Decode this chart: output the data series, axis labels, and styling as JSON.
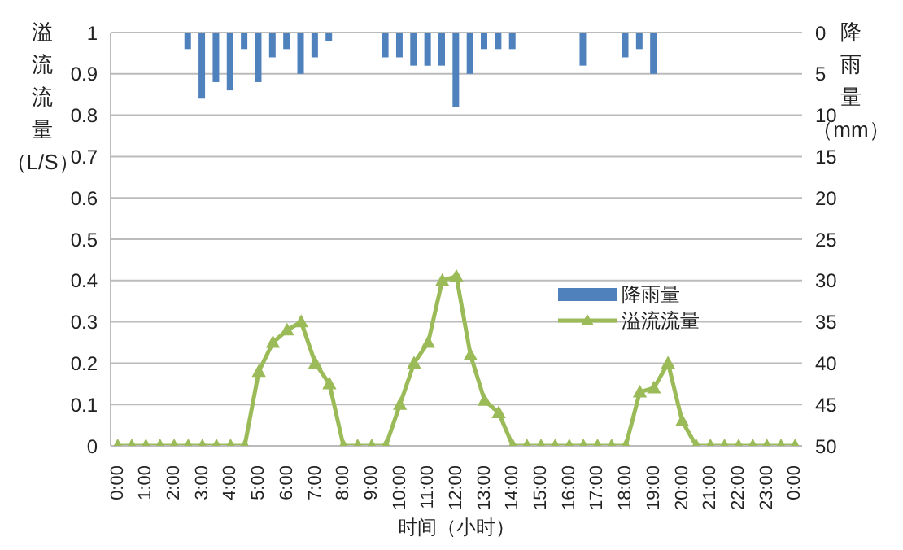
{
  "chart_data": {
    "type": "line",
    "categories": [
      "0:00",
      null,
      "1:00",
      null,
      "2:00",
      null,
      "3:00",
      null,
      "4:00",
      null,
      "5:00",
      null,
      "6:00",
      null,
      "7:00",
      null,
      "8:00",
      null,
      "9:00",
      null,
      "10:00",
      null,
      "11:00",
      null,
      "12:00",
      null,
      "13:00",
      null,
      "14:00",
      null,
      "15:00",
      null,
      "16:00",
      null,
      "17:00",
      null,
      "18:00",
      null,
      "19:00",
      null,
      "20:00",
      null,
      "21:00",
      null,
      "22:00",
      null,
      "23:00",
      null,
      "0:00"
    ],
    "series": [
      {
        "name": "降雨量",
        "type": "bar",
        "axis": "y2",
        "color": "#4f81bd",
        "values": [
          0,
          0,
          0,
          0,
          0,
          2,
          8,
          6,
          7,
          2,
          6,
          3,
          2,
          5,
          3,
          1,
          0,
          0,
          0,
          3,
          3,
          4,
          4,
          4,
          9,
          5,
          2,
          2,
          2,
          0,
          0,
          0,
          0,
          4,
          0,
          0,
          3,
          2,
          5,
          0,
          0,
          0,
          0,
          0,
          0,
          0,
          0,
          0,
          0
        ]
      },
      {
        "name": "溢流流量",
        "color": "#9bbb59",
        "values": [
          0,
          0,
          0,
          0,
          0,
          0,
          0,
          0,
          0,
          0,
          0.18,
          0.25,
          0.28,
          0.3,
          0.2,
          0.15,
          0,
          0,
          0,
          0,
          0.1,
          0.2,
          0.25,
          0.4,
          0.41,
          0.22,
          0.11,
          0.08,
          0,
          0,
          0,
          0,
          0,
          0,
          0,
          0,
          0,
          0.13,
          0.14,
          0.2,
          0.06,
          0,
          0,
          0,
          0,
          0,
          0,
          0,
          0
        ]
      }
    ],
    "xlabel": "时间（小时）",
    "ylabel": "溢流流量（L/S）",
    "y2label": "降雨量（mm）",
    "ylim": [
      0,
      1
    ],
    "yticks": [
      0,
      0.1,
      0.2,
      0.3,
      0.4,
      0.5,
      0.6,
      0.7,
      0.8,
      0.9,
      1
    ],
    "y2lim": [
      50,
      0
    ],
    "y2ticks": [
      0,
      5,
      10,
      15,
      20,
      25,
      30,
      35,
      40,
      45,
      50
    ],
    "grid": "y",
    "legend": "right",
    "marker": "triangle",
    "line_style": "solid"
  }
}
